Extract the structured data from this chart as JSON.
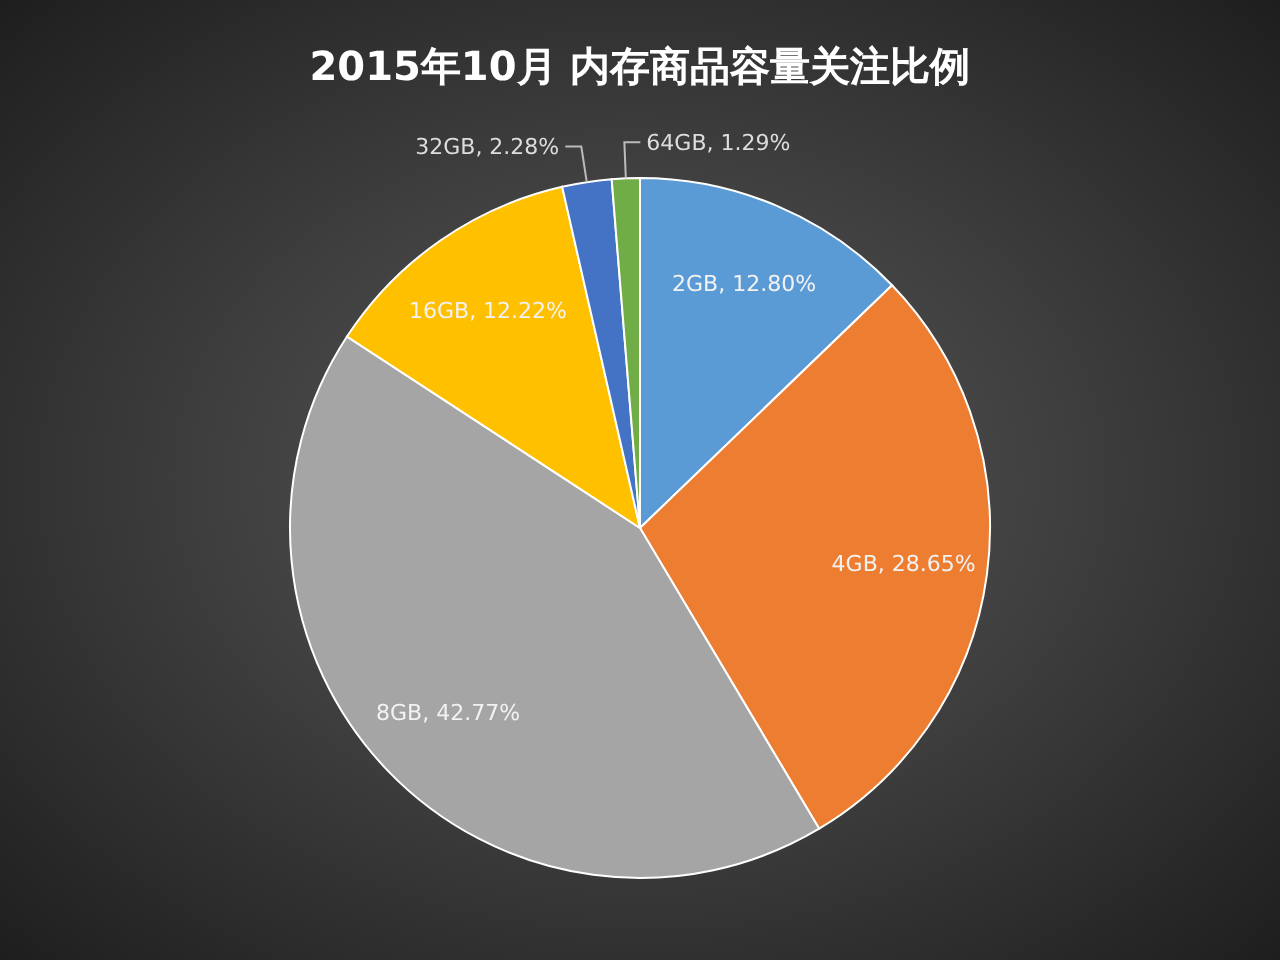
{
  "chart_data": {
    "type": "pie",
    "title": "2015年10月  内存商品容量关注比例",
    "categories": [
      "2GB",
      "4GB",
      "8GB",
      "16GB",
      "32GB",
      "64GB"
    ],
    "values": [
      12.8,
      28.65,
      42.77,
      12.22,
      2.28,
      1.29
    ],
    "value_labels": [
      "12.80%",
      "28.65%",
      "42.77%",
      "12.22%",
      "2.28%",
      "1.29%"
    ],
    "colors": [
      "#5b9bd5",
      "#ed7d31",
      "#a5a5a5",
      "#ffc000",
      "#4472c4",
      "#70ad47"
    ]
  }
}
